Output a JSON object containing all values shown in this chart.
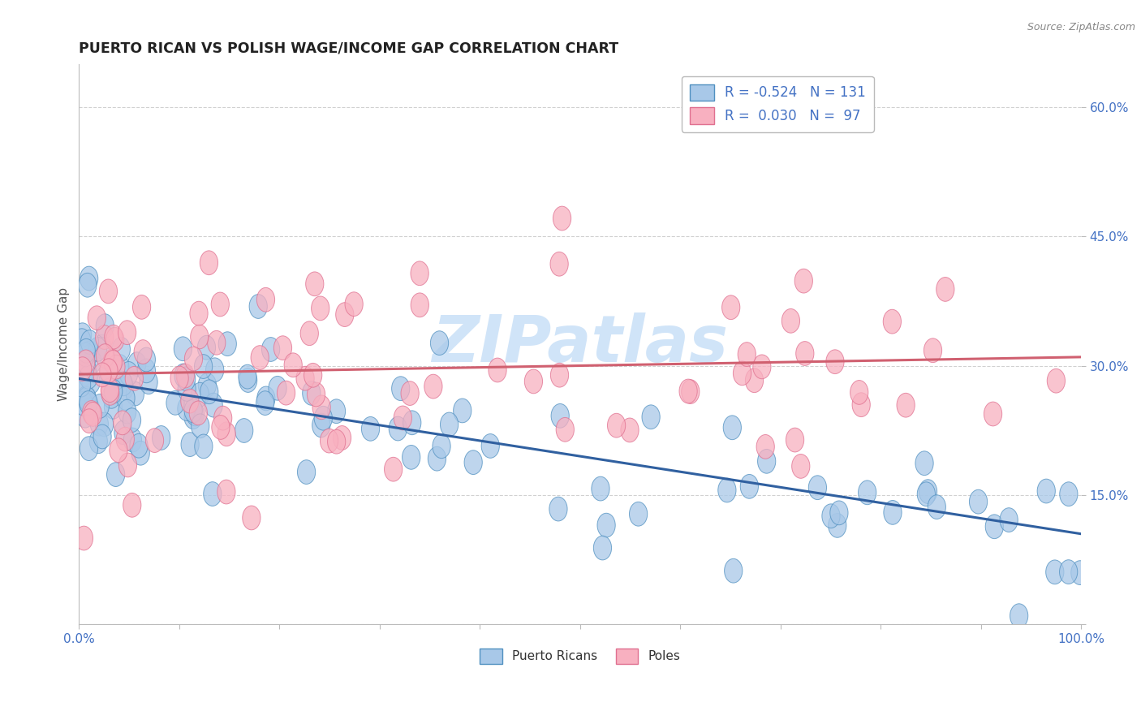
{
  "title": "PUERTO RICAN VS POLISH WAGE/INCOME GAP CORRELATION CHART",
  "source": "Source: ZipAtlas.com",
  "ylabel": "Wage/Income Gap",
  "blue_label": "Puerto Ricans",
  "pink_label": "Poles",
  "blue_R": -0.524,
  "blue_N": 131,
  "pink_R": 0.03,
  "pink_N": 97,
  "xlim": [
    0.0,
    1.0
  ],
  "ylim": [
    0.0,
    0.65
  ],
  "yticks": [
    0.0,
    0.15,
    0.3,
    0.45,
    0.6
  ],
  "ytick_labels": [
    "",
    "15.0%",
    "30.0%",
    "45.0%",
    "60.0%"
  ],
  "xticks": [
    0.0,
    0.1,
    0.2,
    0.3,
    0.4,
    0.5,
    0.6,
    0.7,
    0.8,
    0.9,
    1.0
  ],
  "xtick_labels": [
    "0.0%",
    "",
    "",
    "",
    "",
    "",
    "",
    "",
    "",
    "",
    "100.0%"
  ],
  "blue_fill": "#a8c8e8",
  "blue_edge": "#5090c0",
  "pink_fill": "#f8b0c0",
  "pink_edge": "#e07090",
  "blue_line_color": "#3060a0",
  "pink_line_color": "#d06070",
  "grid_color": "#cccccc",
  "title_color": "#222222",
  "axis_label_color": "#555555",
  "tick_label_color": "#4472c4",
  "legend_text_color": "#4472c4",
  "watermark": "ZIPatlas",
  "watermark_color": "#d0e4f8",
  "blue_trend_x": [
    0.0,
    1.0
  ],
  "blue_trend_y": [
    0.285,
    0.105
  ],
  "pink_trend_x": [
    0.0,
    1.0
  ],
  "pink_trend_y": [
    0.29,
    0.31
  ]
}
